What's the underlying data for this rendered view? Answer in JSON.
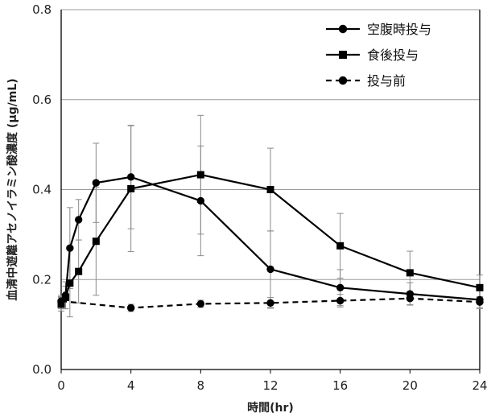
{
  "chart_data": {
    "type": "line",
    "xlabel": "時間(hr)",
    "ylabel": "血清中遊離アセノイラミン酸濃度 (μg/mL)",
    "xlim": [
      0,
      24
    ],
    "ylim": [
      0,
      0.8
    ],
    "x_ticks": [
      "0",
      "4",
      "8",
      "12",
      "16",
      "20",
      "24"
    ],
    "y_ticks": [
      "0.0",
      "0.2",
      "0.4",
      "0.6",
      "0.8"
    ],
    "grid": "horizontal",
    "legend_position": "top-right",
    "series": [
      {
        "name": "空腹時投与",
        "marker": "circle",
        "line": "solid",
        "color": "#000000",
        "points": [
          {
            "x": 0,
            "y": 0.15,
            "err": 0.015
          },
          {
            "x": 0.25,
            "y": 0.165,
            "err": 0.03
          },
          {
            "x": 0.5,
            "y": 0.27,
            "err": 0.09
          },
          {
            "x": 1,
            "y": 0.333,
            "err": 0.045
          },
          {
            "x": 2,
            "y": 0.415,
            "err": 0.088
          },
          {
            "x": 4,
            "y": 0.428,
            "err": 0.115
          },
          {
            "x": 8,
            "y": 0.375,
            "err": 0.122
          },
          {
            "x": 12,
            "y": 0.223,
            "err": 0.085
          },
          {
            "x": 16,
            "y": 0.182,
            "err": 0.04
          },
          {
            "x": 20,
            "y": 0.168,
            "err": 0.025
          },
          {
            "x": 24,
            "y": 0.155,
            "err": 0.02
          }
        ]
      },
      {
        "name": "食後投与",
        "marker": "square",
        "line": "solid",
        "color": "#000000",
        "points": [
          {
            "x": 0,
            "y": 0.145,
            "err": 0.015
          },
          {
            "x": 0.25,
            "y": 0.16,
            "err": 0.025
          },
          {
            "x": 0.5,
            "y": 0.192,
            "err": 0.075
          },
          {
            "x": 1,
            "y": 0.218,
            "err": 0.07
          },
          {
            "x": 2,
            "y": 0.285,
            "err": 0.12
          },
          {
            "x": 4,
            "y": 0.402,
            "err": 0.14
          },
          {
            "x": 8,
            "y": 0.433,
            "err": 0.132
          },
          {
            "x": 12,
            "y": 0.4,
            "err": 0.092
          },
          {
            "x": 16,
            "y": 0.275,
            "err": 0.072
          },
          {
            "x": 20,
            "y": 0.215,
            "err": 0.048
          },
          {
            "x": 24,
            "y": 0.182,
            "err": 0.028
          }
        ]
      },
      {
        "name": "投与前",
        "marker": "circle",
        "line": "dashed",
        "color": "#000000",
        "points": [
          {
            "x": 0,
            "y": 0.152,
            "err": 0.01
          },
          {
            "x": 4,
            "y": 0.137,
            "err": 0.008
          },
          {
            "x": 8,
            "y": 0.146,
            "err": 0.008
          },
          {
            "x": 12,
            "y": 0.148,
            "err": 0.012
          },
          {
            "x": 16,
            "y": 0.153,
            "err": 0.014
          },
          {
            "x": 20,
            "y": 0.158,
            "err": 0.014
          },
          {
            "x": 24,
            "y": 0.15,
            "err": 0.012
          }
        ]
      }
    ]
  }
}
